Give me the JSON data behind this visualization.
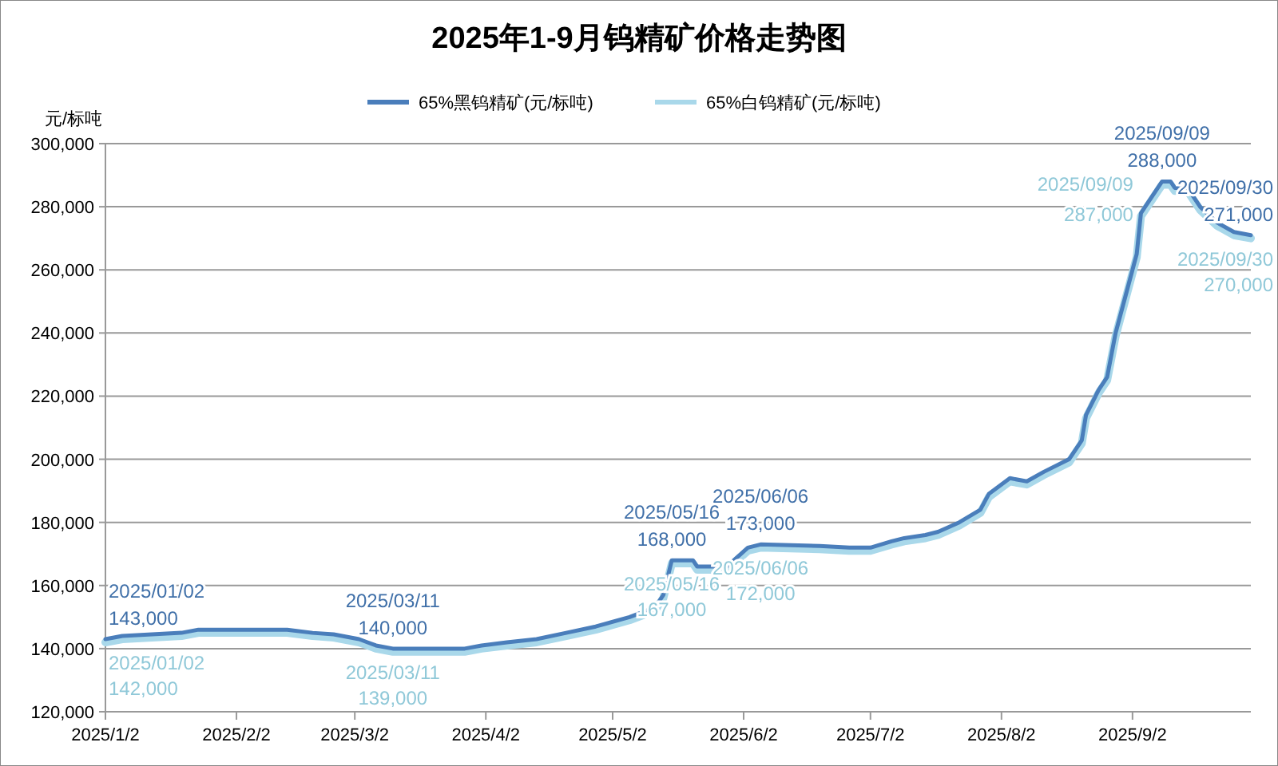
{
  "chart_data": {
    "type": "line",
    "title": "2025年1-9月钨精矿价格走势图",
    "ylabel": "元/标吨",
    "x": [
      "2025-01-02",
      "2025-01-06",
      "2025-01-13",
      "2025-01-20",
      "2025-01-24",
      "2025-02-14",
      "2025-02-20",
      "2025-02-25",
      "2025-03-03",
      "2025-03-05",
      "2025-03-07",
      "2025-03-11",
      "2025-03-28",
      "2025-04-01",
      "2025-04-07",
      "2025-04-14",
      "2025-04-21",
      "2025-04-28",
      "2025-05-06",
      "2025-05-08",
      "2025-05-12",
      "2025-05-14",
      "2025-05-16",
      "2025-05-21",
      "2025-05-22",
      "2025-05-29",
      "2025-06-03",
      "2025-06-06",
      "2025-06-20",
      "2025-06-27",
      "2025-07-02",
      "2025-07-07",
      "2025-07-10",
      "2025-07-15",
      "2025-07-18",
      "2025-07-23",
      "2025-07-28",
      "2025-07-30",
      "2025-08-04",
      "2025-08-08",
      "2025-08-12",
      "2025-08-18",
      "2025-08-21",
      "2025-08-22",
      "2025-08-25",
      "2025-08-27",
      "2025-08-29",
      "2025-09-01",
      "2025-09-03",
      "2025-09-04",
      "2025-09-05",
      "2025-09-09",
      "2025-09-11",
      "2025-09-12",
      "2025-09-15",
      "2025-09-18",
      "2025-09-22",
      "2025-09-26",
      "2025-09-30"
    ],
    "series": [
      {
        "name": "65%黑钨精矿(元/标吨)",
        "color": "#4a7ebb",
        "values": [
          143000,
          144000,
          144500,
          145000,
          146000,
          146000,
          145000,
          144500,
          143000,
          142000,
          141000,
          140000,
          140000,
          141000,
          142000,
          143000,
          145000,
          147000,
          150000,
          151000,
          153000,
          157000,
          168000,
          168000,
          166000,
          166000,
          172000,
          173000,
          172500,
          172000,
          172000,
          174000,
          175000,
          176000,
          177000,
          180000,
          184000,
          189000,
          194000,
          193000,
          196000,
          200000,
          206000,
          214000,
          222000,
          226000,
          240000,
          255000,
          265000,
          278000,
          280000,
          288000,
          288000,
          286000,
          286000,
          280000,
          275000,
          272000,
          271000
        ],
        "value_labels": [
          "2025/01/02\n143,000",
          null,
          null,
          null,
          null,
          null,
          null,
          null,
          null,
          null,
          null,
          "2025/03/11\n140,000",
          null,
          null,
          null,
          null,
          null,
          null,
          null,
          null,
          null,
          null,
          "2025/05/16\n168,000",
          null,
          null,
          null,
          null,
          "2025/06/06\n173,000",
          null,
          null,
          null,
          null,
          null,
          null,
          null,
          null,
          null,
          null,
          null,
          null,
          null,
          null,
          null,
          null,
          null,
          null,
          null,
          null,
          null,
          null,
          null,
          "2025/09/09\n288,000",
          null,
          null,
          null,
          null,
          null,
          null,
          "2025/09/30\n271,000"
        ]
      },
      {
        "name": "65%白钨精矿(元/标吨)",
        "color": "#a9d8ea",
        "values": [
          142000,
          143000,
          143500,
          144000,
          145000,
          145000,
          144000,
          143500,
          142000,
          141000,
          140000,
          139000,
          139000,
          140000,
          141000,
          142000,
          144000,
          146000,
          149000,
          150000,
          152000,
          156000,
          167000,
          167000,
          165000,
          165000,
          171000,
          172000,
          171500,
          171000,
          171000,
          173000,
          174000,
          175000,
          176000,
          179000,
          183000,
          188000,
          193000,
          192000,
          195000,
          199000,
          205000,
          213000,
          221000,
          225000,
          239000,
          254000,
          264000,
          277000,
          279000,
          287000,
          287000,
          285000,
          285000,
          279000,
          274000,
          271000,
          270000
        ],
        "value_labels": [
          "2025/01/02\n142,000",
          null,
          null,
          null,
          null,
          null,
          null,
          null,
          null,
          null,
          null,
          "2025/03/11\n139,000",
          null,
          null,
          null,
          null,
          null,
          null,
          null,
          null,
          null,
          null,
          "2025/05/16\n167,000",
          null,
          null,
          null,
          null,
          "2025/06/06\n172,000",
          null,
          null,
          null,
          null,
          null,
          null,
          null,
          null,
          null,
          null,
          null,
          null,
          null,
          null,
          null,
          null,
          null,
          null,
          null,
          null,
          null,
          null,
          null,
          "2025/09/09\n287,000",
          null,
          null,
          null,
          null,
          null,
          null,
          "2025/09/30\n270,000"
        ]
      }
    ],
    "xlim": [
      "2025-01-02",
      "2025-09-30"
    ],
    "xticks": [
      {
        "value": "2025-01-02",
        "label": "2025/1/2"
      },
      {
        "value": "2025-02-02",
        "label": "2025/2/2"
      },
      {
        "value": "2025-03-02",
        "label": "2025/3/2"
      },
      {
        "value": "2025-04-02",
        "label": "2025/4/2"
      },
      {
        "value": "2025-05-02",
        "label": "2025/5/2"
      },
      {
        "value": "2025-06-02",
        "label": "2025/6/2"
      },
      {
        "value": "2025-07-02",
        "label": "2025/7/2"
      },
      {
        "value": "2025-08-02",
        "label": "2025/8/2"
      },
      {
        "value": "2025-09-02",
        "label": "2025/9/2"
      }
    ],
    "ylim": [
      120000,
      300000
    ],
    "yticks": [
      {
        "value": 120000,
        "label": "120,000"
      },
      {
        "value": 140000,
        "label": "140,000"
      },
      {
        "value": 160000,
        "label": "160,000"
      },
      {
        "value": 180000,
        "label": "180,000"
      },
      {
        "value": 200000,
        "label": "200,000"
      },
      {
        "value": 220000,
        "label": "220,000"
      },
      {
        "value": 240000,
        "label": "240,000"
      },
      {
        "value": 260000,
        "label": "260,000"
      },
      {
        "value": 280000,
        "label": "280,000"
      },
      {
        "value": 300000,
        "label": "300,000"
      }
    ],
    "grid": "y",
    "legend": "top",
    "marker": "none",
    "line_style": "solid"
  }
}
